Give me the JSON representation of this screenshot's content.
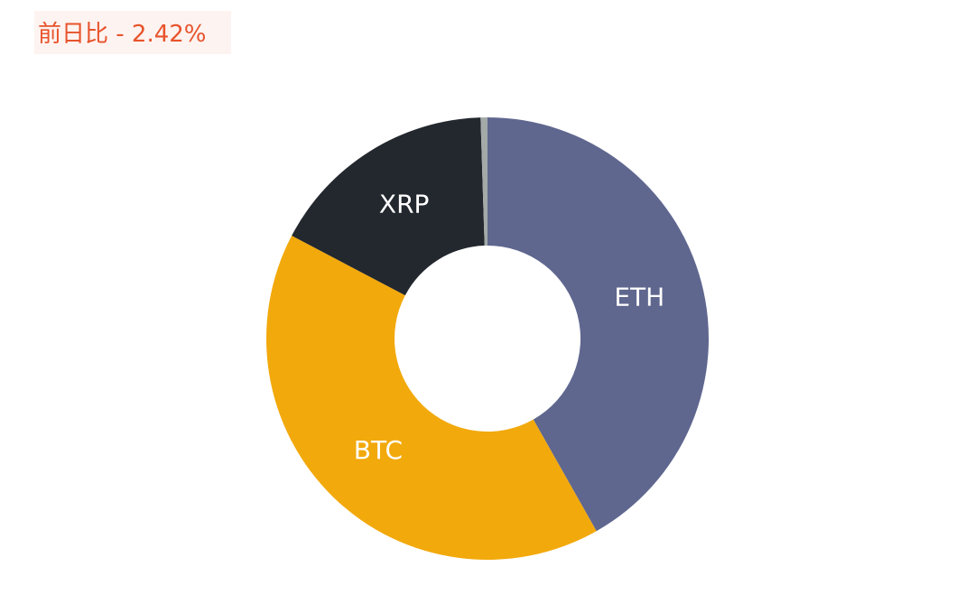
{
  "chart_data": {
    "type": "donut",
    "title": "前日比 - 2.42%",
    "categories": [
      "ETH",
      "BTC",
      "XRP",
      null
    ],
    "values": [
      41.8,
      40.9,
      16.8,
      0.5
    ],
    "colors": [
      "#5f678f",
      "#f2a90c",
      "#23272e",
      "#a3aaa8"
    ],
    "start_angle": 0,
    "direction": "clockwise"
  }
}
